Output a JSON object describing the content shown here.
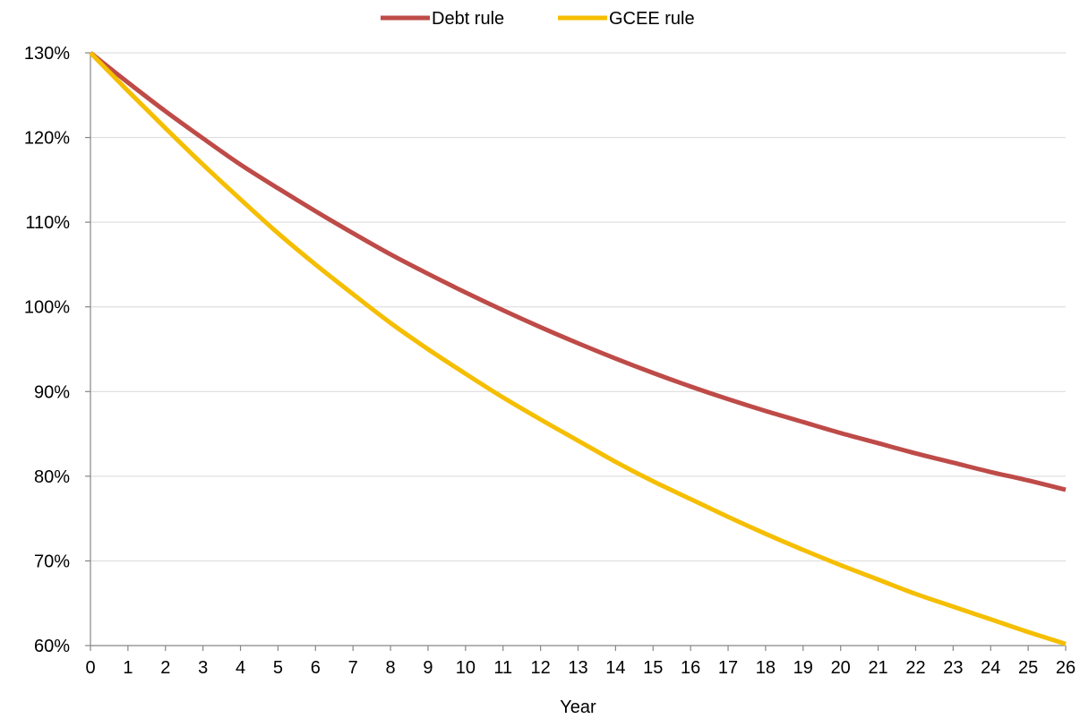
{
  "chart_data": {
    "type": "line",
    "xlabel": "Year",
    "ylabel": "",
    "x": [
      0,
      1,
      2,
      3,
      4,
      5,
      6,
      7,
      8,
      9,
      10,
      11,
      12,
      13,
      14,
      15,
      16,
      17,
      18,
      19,
      20,
      21,
      22,
      23,
      24,
      25,
      26
    ],
    "xlim": [
      0,
      26
    ],
    "ylim": [
      60,
      130
    ],
    "y_ticks": [
      60,
      70,
      80,
      90,
      100,
      110,
      120,
      130
    ],
    "y_tick_format": "percent",
    "grid": "horizontal",
    "legend_position": "top-center",
    "series": [
      {
        "name": "Debt rule",
        "color": "#BE4B48",
        "values": [
          130,
          126.5,
          123.1,
          119.9,
          116.8,
          114.0,
          111.3,
          108.7,
          106.2,
          103.9,
          101.7,
          99.6,
          97.6,
          95.7,
          93.9,
          92.2,
          90.6,
          89.1,
          87.7,
          86.4,
          85.1,
          83.9,
          82.7,
          81.6,
          80.5,
          79.5,
          78.4
        ]
      },
      {
        "name": "GCEE rule",
        "color": "#F5BE00",
        "values": [
          130,
          125.5,
          121.1,
          116.8,
          112.7,
          108.7,
          105.0,
          101.5,
          98.1,
          95.0,
          92.1,
          89.3,
          86.7,
          84.2,
          81.7,
          79.4,
          77.3,
          75.2,
          73.2,
          71.3,
          69.5,
          67.8,
          66.1,
          64.6,
          63.1,
          61.6,
          60.2
        ]
      }
    ]
  }
}
